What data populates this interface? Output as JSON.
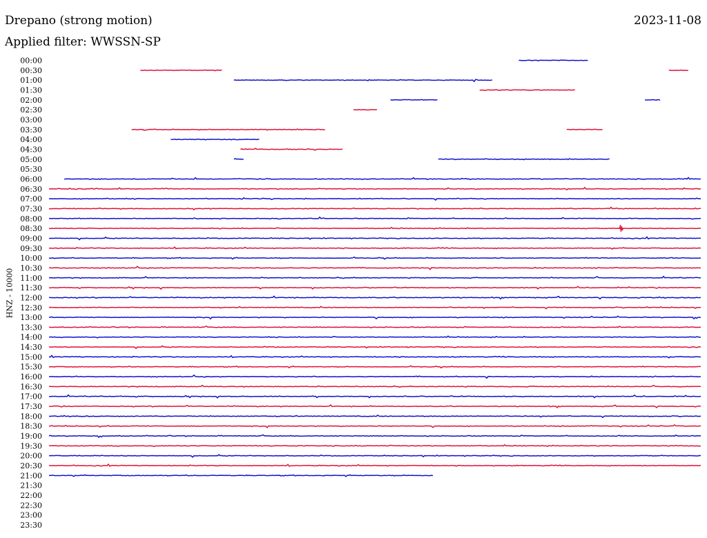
{
  "header": {
    "title": "Drepano (strong motion)",
    "date": "2023-11-08",
    "filter_label": "Applied filter: WWSSN-SP"
  },
  "colors": {
    "even_row": "#1010d0",
    "odd_row": "#e0103a",
    "text": "#000000",
    "background": "#ffffff"
  },
  "chart_data": {
    "type": "line",
    "title": "Drepano (strong motion)",
    "ylabel": "HNZ - 10000",
    "row_interval_minutes": 30,
    "x_range_minutes": [
      0,
      30
    ],
    "row_labels": [
      "00:00",
      "00:30",
      "01:00",
      "01:30",
      "02:00",
      "02:30",
      "03:00",
      "03:30",
      "04:00",
      "04:30",
      "05:00",
      "05:30",
      "06:00",
      "06:30",
      "07:00",
      "07:30",
      "08:00",
      "08:30",
      "09:00",
      "09:30",
      "10:00",
      "10:30",
      "11:00",
      "11:30",
      "12:00",
      "12:30",
      "13:00",
      "13:30",
      "14:00",
      "14:30",
      "15:00",
      "15:30",
      "16:00",
      "16:30",
      "17:00",
      "17:30",
      "18:00",
      "18:30",
      "19:00",
      "19:30",
      "20:00",
      "20:30",
      "21:00",
      "21:30",
      "22:00",
      "22:30",
      "23:00",
      "23:30"
    ],
    "traces": [
      {
        "row": "00:00",
        "segments_min": [
          [
            21.6,
            24.8
          ]
        ]
      },
      {
        "row": "00:30",
        "segments_min": [
          [
            4.2,
            8.0
          ],
          [
            28.5,
            29.4
          ]
        ]
      },
      {
        "row": "01:00",
        "segments_min": [
          [
            8.5,
            20.4
          ]
        ]
      },
      {
        "row": "01:30",
        "segments_min": [
          [
            19.8,
            24.2
          ]
        ]
      },
      {
        "row": "02:00",
        "segments_min": [
          [
            15.7,
            17.9
          ],
          [
            27.4,
            28.1
          ]
        ]
      },
      {
        "row": "02:30",
        "segments_min": [
          [
            14.0,
            15.1
          ]
        ]
      },
      {
        "row": "03:30",
        "segments_min": [
          [
            3.8,
            12.7
          ],
          [
            23.8,
            25.5
          ]
        ]
      },
      {
        "row": "04:00",
        "segments_min": [
          [
            5.6,
            9.7
          ]
        ]
      },
      {
        "row": "04:30",
        "segments_min": [
          [
            8.8,
            13.5
          ]
        ]
      },
      {
        "row": "05:00",
        "segments_min": [
          [
            8.5,
            9.0
          ],
          [
            17.9,
            25.8
          ]
        ]
      },
      {
        "row": "06:00",
        "segments_min": [
          [
            0.7,
            30.0
          ]
        ]
      },
      {
        "row": "06:30",
        "segments_min": [
          [
            0.0,
            30.0
          ]
        ]
      },
      {
        "row": "07:00",
        "segments_min": [
          [
            0.0,
            30.0
          ]
        ]
      },
      {
        "row": "07:30",
        "segments_min": [
          [
            0.0,
            30.0
          ]
        ]
      },
      {
        "row": "08:00",
        "segments_min": [
          [
            0.0,
            30.0
          ]
        ]
      },
      {
        "row": "08:30",
        "segments_min": [
          [
            0.0,
            30.0
          ]
        ]
      },
      {
        "row": "09:00",
        "segments_min": [
          [
            0.0,
            30.0
          ]
        ]
      },
      {
        "row": "09:30",
        "segments_min": [
          [
            0.0,
            30.0
          ]
        ]
      },
      {
        "row": "10:00",
        "segments_min": [
          [
            0.0,
            30.0
          ]
        ]
      },
      {
        "row": "10:30",
        "segments_min": [
          [
            0.0,
            30.0
          ]
        ]
      },
      {
        "row": "11:00",
        "segments_min": [
          [
            0.0,
            30.0
          ]
        ]
      },
      {
        "row": "11:30",
        "segments_min": [
          [
            0.0,
            30.0
          ]
        ]
      },
      {
        "row": "12:00",
        "segments_min": [
          [
            0.0,
            30.0
          ]
        ]
      },
      {
        "row": "12:30",
        "segments_min": [
          [
            0.0,
            30.0
          ]
        ]
      },
      {
        "row": "13:00",
        "segments_min": [
          [
            0.0,
            30.0
          ]
        ]
      },
      {
        "row": "13:30",
        "segments_min": [
          [
            0.0,
            30.0
          ]
        ]
      },
      {
        "row": "14:00",
        "segments_min": [
          [
            0.0,
            30.0
          ]
        ]
      },
      {
        "row": "14:30",
        "segments_min": [
          [
            0.0,
            30.0
          ]
        ]
      },
      {
        "row": "15:00",
        "segments_min": [
          [
            0.0,
            30.0
          ]
        ]
      },
      {
        "row": "15:30",
        "segments_min": [
          [
            0.0,
            30.0
          ]
        ]
      },
      {
        "row": "16:00",
        "segments_min": [
          [
            0.0,
            30.0
          ]
        ]
      },
      {
        "row": "16:30",
        "segments_min": [
          [
            0.0,
            30.0
          ]
        ]
      },
      {
        "row": "17:00",
        "segments_min": [
          [
            0.0,
            30.0
          ]
        ]
      },
      {
        "row": "17:30",
        "segments_min": [
          [
            0.0,
            30.0
          ]
        ]
      },
      {
        "row": "18:00",
        "segments_min": [
          [
            0.0,
            30.0
          ]
        ]
      },
      {
        "row": "18:30",
        "segments_min": [
          [
            0.0,
            30.0
          ]
        ]
      },
      {
        "row": "19:00",
        "segments_min": [
          [
            0.0,
            30.0
          ]
        ]
      },
      {
        "row": "19:30",
        "segments_min": [
          [
            0.0,
            30.0
          ]
        ]
      },
      {
        "row": "20:00",
        "segments_min": [
          [
            0.0,
            30.0
          ]
        ]
      },
      {
        "row": "20:30",
        "segments_min": [
          [
            0.0,
            30.0
          ]
        ]
      },
      {
        "row": "21:00",
        "segments_min": [
          [
            0.0,
            17.7
          ]
        ]
      }
    ],
    "events": [
      {
        "row": "08:30",
        "minute": 26.3,
        "label": ""
      }
    ],
    "grid": false,
    "legend": "none"
  }
}
